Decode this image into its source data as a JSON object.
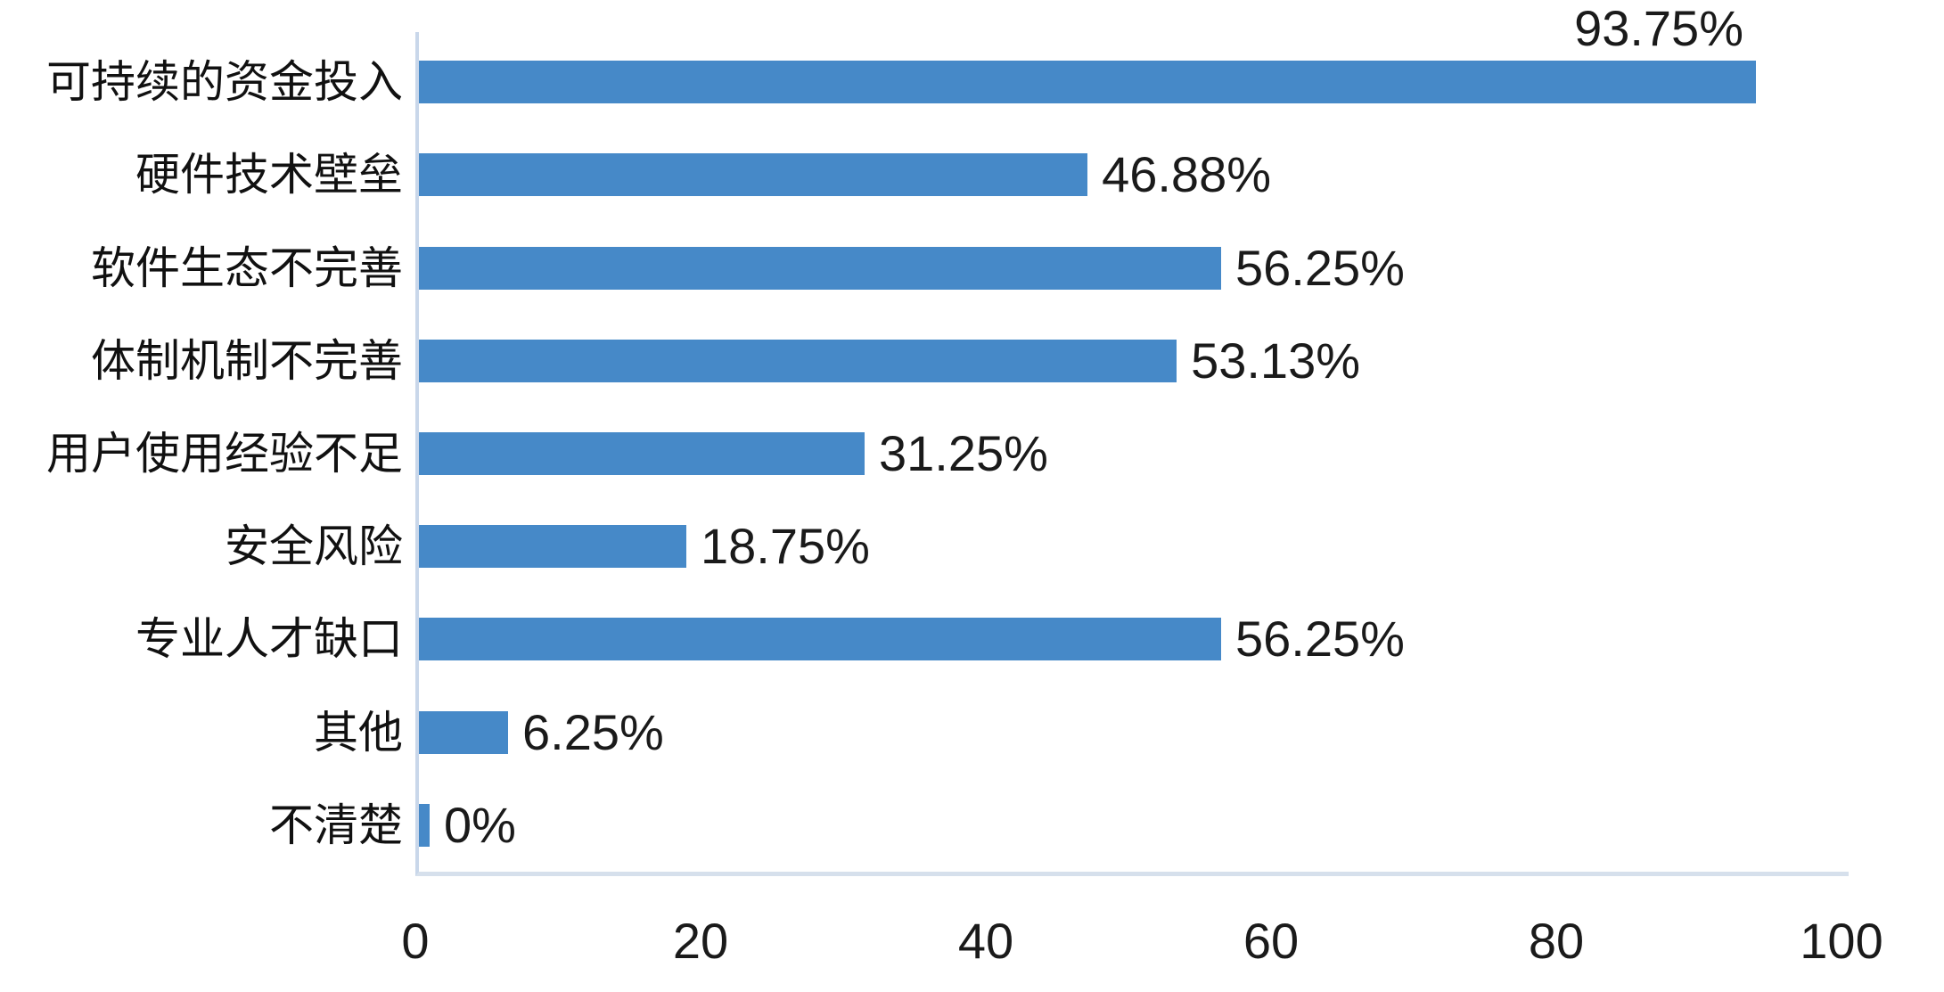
{
  "chart_data": {
    "type": "bar",
    "orientation": "horizontal",
    "title": "",
    "xlabel": "",
    "ylabel": "",
    "categories": [
      "可持续的资金投入",
      "硬件技术壁垒",
      "软件生态不完善",
      "体制机制不完善",
      "用户使用经验不足",
      "安全风险",
      "专业人才缺口",
      "其他",
      "不清楚"
    ],
    "values": [
      93.75,
      46.88,
      56.25,
      53.13,
      31.25,
      18.75,
      56.25,
      6.25,
      0
    ],
    "value_labels": [
      "93.75%",
      "46.88%",
      "56.25%",
      "53.13%",
      "31.25%",
      "18.75%",
      "56.25%",
      "6.25%",
      "0%"
    ],
    "x_axis": {
      "min": 0,
      "max": 100,
      "ticks": [
        0,
        20,
        40,
        60,
        80,
        100
      ]
    },
    "grid": false,
    "legend": null,
    "colors": {
      "bar": "#4689c8",
      "axis_line": "#c9d7ea",
      "baseline": "#d6e0ec",
      "text": "#1a1a1a"
    },
    "value_label_position_first": "above-bar-end",
    "value_label_position_rest": "right-of-bar"
  }
}
